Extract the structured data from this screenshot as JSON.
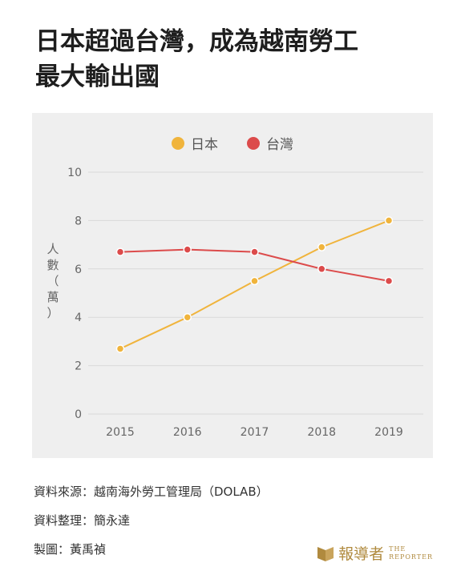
{
  "title": {
    "line1": "日本超過台灣，成為越南勞工",
    "line2": "最大輸出國"
  },
  "colors": {
    "japan": "#f0b43c",
    "taiwan": "#dc4b4b",
    "panel": "#efefef",
    "grid": "#d9d9d9",
    "logo": "#b08a3e"
  },
  "chart_data": {
    "type": "line",
    "x": [
      "2015",
      "2016",
      "2017",
      "2018",
      "2019"
    ],
    "series": [
      {
        "name": "日本",
        "values": [
          2.7,
          4.0,
          5.5,
          6.9,
          8.0
        ]
      },
      {
        "name": "台灣",
        "values": [
          6.7,
          6.8,
          6.7,
          6.0,
          5.5
        ]
      }
    ],
    "ylabel": [
      "人",
      "數",
      "（",
      "萬",
      "）"
    ],
    "yticks": [
      0,
      2,
      4,
      6,
      8,
      10
    ],
    "ylim": [
      0,
      10
    ],
    "grid": true,
    "legend_position": "top-center"
  },
  "footer": {
    "source": "資料來源：越南海外勞工管理局（DOLAB）",
    "compiled": "資料整理：簡永達",
    "graphic": "製圖：黃禹禎"
  },
  "logo": {
    "name": "報導者",
    "sub1": "THE",
    "sub2": "REPORTER"
  }
}
